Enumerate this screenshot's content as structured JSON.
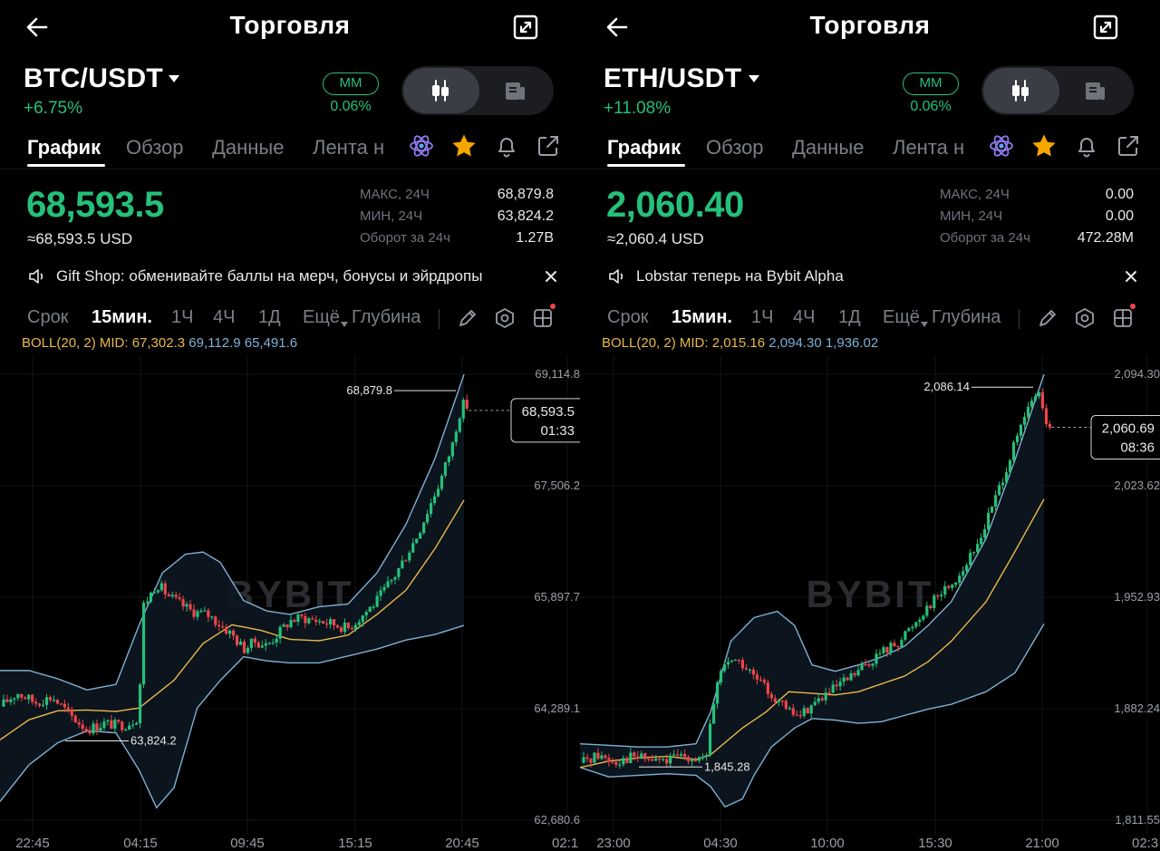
{
  "colors": {
    "up": "#25c07a",
    "down": "#ef454a",
    "mid": "#e9b84a",
    "band": "#7eb1d4",
    "accent_star": "#f7a600"
  },
  "panels": [
    {
      "title": "Торговля",
      "pair": "BTC/USDT",
      "change": "+6.75%",
      "mm_label": "MM",
      "mm_value": "0.06%",
      "tabs": [
        "График",
        "Обзор",
        "Данные",
        "Лента н"
      ],
      "price": "68,593.5",
      "price_usd": "≈68,593.5 USD",
      "stats": [
        {
          "label": "МАКС, 24Ч",
          "value": "68,879.8"
        },
        {
          "label": "МИН, 24Ч",
          "value": "63,824.2"
        },
        {
          "label": "Оборот за 24ч",
          "value": "1.27B"
        }
      ],
      "notice": "Gift Shop: обменивайте баллы на мерч, бонусы и эйрдропы",
      "timeframes": [
        "Срок",
        "15мин.",
        "1Ч",
        "4Ч",
        "1Д",
        "Ещё",
        "Глубина"
      ],
      "boll_mid": "BOLL(20, 2) MID: 67,302.3",
      "boll_ub": "69,112.9",
      "boll_lb": "65,491.6",
      "watermark": "BYBIT",
      "last_price": "68,593.5",
      "countdown": "01:33",
      "chart_data": {
        "type": "candlestick",
        "y_ticks": [
          "69,114.8",
          "67,506.2",
          "65,897.7",
          "64,289.1",
          "62,680.6"
        ],
        "x_ticks": [
          "22:45",
          "04:15",
          "09:45",
          "15:15",
          "20:45",
          "02:1"
        ],
        "high_annotation": "68,879.8",
        "low_annotation": "63,824.2",
        "ylim": [
          62680.6,
          69114.8
        ],
        "x_range": [
          "22:45",
          "02:15"
        ],
        "path": [
          [
            0,
            64320
          ],
          [
            0.03,
            64520
          ],
          [
            0.06,
            64380
          ],
          [
            0.09,
            64460
          ],
          [
            0.12,
            64200
          ],
          [
            0.15,
            63990
          ],
          [
            0.18,
            64080
          ],
          [
            0.2,
            64050
          ],
          [
            0.22,
            64070
          ],
          [
            0.24,
            64180
          ],
          [
            0.245,
            65750
          ],
          [
            0.26,
            65950
          ],
          [
            0.27,
            66100
          ],
          [
            0.29,
            65920
          ],
          [
            0.31,
            65800
          ],
          [
            0.33,
            65700
          ],
          [
            0.36,
            65640
          ],
          [
            0.38,
            65500
          ],
          [
            0.4,
            65360
          ],
          [
            0.42,
            65150
          ],
          [
            0.44,
            65260
          ],
          [
            0.46,
            65200
          ],
          [
            0.48,
            65380
          ],
          [
            0.5,
            65560
          ],
          [
            0.52,
            65600
          ],
          [
            0.55,
            65560
          ],
          [
            0.58,
            65500
          ],
          [
            0.6,
            65450
          ],
          [
            0.62,
            65600
          ],
          [
            0.65,
            65850
          ],
          [
            0.68,
            66200
          ],
          [
            0.7,
            66500
          ],
          [
            0.72,
            66800
          ],
          [
            0.74,
            67200
          ],
          [
            0.76,
            67600
          ],
          [
            0.78,
            68100
          ],
          [
            0.79,
            68500
          ],
          [
            0.8,
            68700
          ],
          [
            0.805,
            68620
          ]
        ],
        "mid_path": [
          [
            0,
            63840
          ],
          [
            0.05,
            64130
          ],
          [
            0.1,
            64260
          ],
          [
            0.15,
            64270
          ],
          [
            0.2,
            64250
          ],
          [
            0.24,
            64300
          ],
          [
            0.3,
            64700
          ],
          [
            0.35,
            65230
          ],
          [
            0.4,
            65500
          ],
          [
            0.45,
            65420
          ],
          [
            0.5,
            65290
          ],
          [
            0.55,
            65270
          ],
          [
            0.6,
            65350
          ],
          [
            0.65,
            65650
          ],
          [
            0.7,
            66000
          ],
          [
            0.75,
            66600
          ],
          [
            0.8,
            67300
          ]
        ],
        "upper_path": [
          [
            0,
            64840
          ],
          [
            0.05,
            64840
          ],
          [
            0.1,
            64720
          ],
          [
            0.15,
            64560
          ],
          [
            0.2,
            64640
          ],
          [
            0.24,
            65500
          ],
          [
            0.28,
            66250
          ],
          [
            0.32,
            66520
          ],
          [
            0.35,
            66550
          ],
          [
            0.38,
            66400
          ],
          [
            0.42,
            65850
          ],
          [
            0.46,
            65700
          ],
          [
            0.5,
            65650
          ],
          [
            0.55,
            65760
          ],
          [
            0.6,
            65800
          ],
          [
            0.65,
            66250
          ],
          [
            0.7,
            66950
          ],
          [
            0.75,
            67900
          ],
          [
            0.8,
            69112.9
          ]
        ],
        "lower_path": [
          [
            0,
            62950
          ],
          [
            0.05,
            63480
          ],
          [
            0.1,
            63800
          ],
          [
            0.15,
            63970
          ],
          [
            0.2,
            63940
          ],
          [
            0.24,
            63400
          ],
          [
            0.27,
            62860
          ],
          [
            0.3,
            63150
          ],
          [
            0.34,
            64300
          ],
          [
            0.38,
            64700
          ],
          [
            0.42,
            65040
          ],
          [
            0.46,
            64980
          ],
          [
            0.5,
            64950
          ],
          [
            0.55,
            64950
          ],
          [
            0.6,
            65050
          ],
          [
            0.65,
            65150
          ],
          [
            0.7,
            65280
          ],
          [
            0.75,
            65360
          ],
          [
            0.8,
            65491.6
          ]
        ]
      }
    },
    {
      "title": "Торговля",
      "pair": "ETH/USDT",
      "change": "+11.08%",
      "mm_label": "MM",
      "mm_value": "0.06%",
      "tabs": [
        "График",
        "Обзор",
        "Данные",
        "Лента н"
      ],
      "price": "2,060.40",
      "price_usd": "≈2,060.4 USD",
      "stats": [
        {
          "label": "МАКС, 24Ч",
          "value": "0.00"
        },
        {
          "label": "МИН, 24Ч",
          "value": "0.00"
        },
        {
          "label": "Оборот за 24ч",
          "value": "472.28M"
        }
      ],
      "notice": "Lobstar теперь на Bybit Alpha",
      "timeframes": [
        "Срок",
        "15мин.",
        "1Ч",
        "4Ч",
        "1Д",
        "Ещё",
        "Глубина"
      ],
      "boll_mid": "BOLL(20, 2) MID: 2,015.16",
      "boll_ub": "2,094.30",
      "boll_lb": "1,936.02",
      "watermark": "BYBIT",
      "last_price": "2,060.69",
      "countdown": "08:36",
      "chart_data": {
        "type": "candlestick",
        "y_ticks": [
          "2,094.30",
          "2,023.62",
          "1,952.93",
          "1,882.24",
          "1,811.55"
        ],
        "x_ticks": [
          "23:00",
          "04:30",
          "10:00",
          "15:30",
          "21:00",
          "02:3"
        ],
        "high_annotation": "2,086.14",
        "low_annotation": "1,845.28",
        "ylim": [
          1811.55,
          2094.3
        ],
        "x_range": [
          "23:00",
          "02:30"
        ],
        "path": [
          [
            0,
            1848
          ],
          [
            0.03,
            1853
          ],
          [
            0.06,
            1849
          ],
          [
            0.09,
            1852
          ],
          [
            0.12,
            1850
          ],
          [
            0.15,
            1849
          ],
          [
            0.18,
            1853
          ],
          [
            0.2,
            1851
          ],
          [
            0.22,
            1850
          ],
          [
            0.225,
            1875
          ],
          [
            0.24,
            1905
          ],
          [
            0.26,
            1915
          ],
          [
            0.28,
            1910
          ],
          [
            0.3,
            1902
          ],
          [
            0.32,
            1895
          ],
          [
            0.34,
            1888
          ],
          [
            0.36,
            1880
          ],
          [
            0.38,
            1878
          ],
          [
            0.4,
            1885
          ],
          [
            0.42,
            1890
          ],
          [
            0.44,
            1895
          ],
          [
            0.46,
            1900
          ],
          [
            0.48,
            1906
          ],
          [
            0.5,
            1912
          ],
          [
            0.52,
            1918
          ],
          [
            0.55,
            1925
          ],
          [
            0.58,
            1938
          ],
          [
            0.6,
            1948
          ],
          [
            0.62,
            1955
          ],
          [
            0.65,
            1965
          ],
          [
            0.68,
            1982
          ],
          [
            0.7,
            2000
          ],
          [
            0.72,
            2020
          ],
          [
            0.74,
            2040
          ],
          [
            0.76,
            2060
          ],
          [
            0.78,
            2078
          ],
          [
            0.79,
            2084
          ],
          [
            0.8,
            2066
          ],
          [
            0.81,
            2060.69
          ]
        ],
        "mid_path": [
          [
            0,
            1845
          ],
          [
            0.05,
            1849
          ],
          [
            0.1,
            1851
          ],
          [
            0.15,
            1852
          ],
          [
            0.2,
            1850
          ],
          [
            0.225,
            1853
          ],
          [
            0.28,
            1870
          ],
          [
            0.32,
            1880
          ],
          [
            0.36,
            1893
          ],
          [
            0.4,
            1892
          ],
          [
            0.44,
            1891
          ],
          [
            0.48,
            1893
          ],
          [
            0.52,
            1898
          ],
          [
            0.56,
            1903
          ],
          [
            0.6,
            1912
          ],
          [
            0.64,
            1925
          ],
          [
            0.7,
            1950
          ],
          [
            0.75,
            1982
          ],
          [
            0.8,
            2015.16
          ]
        ],
        "upper_path": [
          [
            0,
            1860
          ],
          [
            0.05,
            1859
          ],
          [
            0.1,
            1858
          ],
          [
            0.15,
            1858
          ],
          [
            0.2,
            1860
          ],
          [
            0.225,
            1880
          ],
          [
            0.26,
            1925
          ],
          [
            0.3,
            1940
          ],
          [
            0.34,
            1944
          ],
          [
            0.37,
            1935
          ],
          [
            0.4,
            1910
          ],
          [
            0.44,
            1906
          ],
          [
            0.48,
            1910
          ],
          [
            0.52,
            1915
          ],
          [
            0.56,
            1922
          ],
          [
            0.6,
            1935
          ],
          [
            0.64,
            1950
          ],
          [
            0.7,
            1990
          ],
          [
            0.75,
            2040
          ],
          [
            0.8,
            2094.3
          ]
        ],
        "lower_path": [
          [
            0,
            1845
          ],
          [
            0.05,
            1839
          ],
          [
            0.1,
            1840
          ],
          [
            0.15,
            1841
          ],
          [
            0.2,
            1840
          ],
          [
            0.225,
            1833
          ],
          [
            0.25,
            1820
          ],
          [
            0.28,
            1825
          ],
          [
            0.3,
            1840
          ],
          [
            0.33,
            1858
          ],
          [
            0.37,
            1870
          ],
          [
            0.4,
            1876
          ],
          [
            0.44,
            1875
          ],
          [
            0.48,
            1873
          ],
          [
            0.52,
            1874
          ],
          [
            0.56,
            1878
          ],
          [
            0.6,
            1882
          ],
          [
            0.64,
            1885
          ],
          [
            0.7,
            1893
          ],
          [
            0.75,
            1905
          ],
          [
            0.8,
            1936.02
          ]
        ]
      }
    }
  ]
}
